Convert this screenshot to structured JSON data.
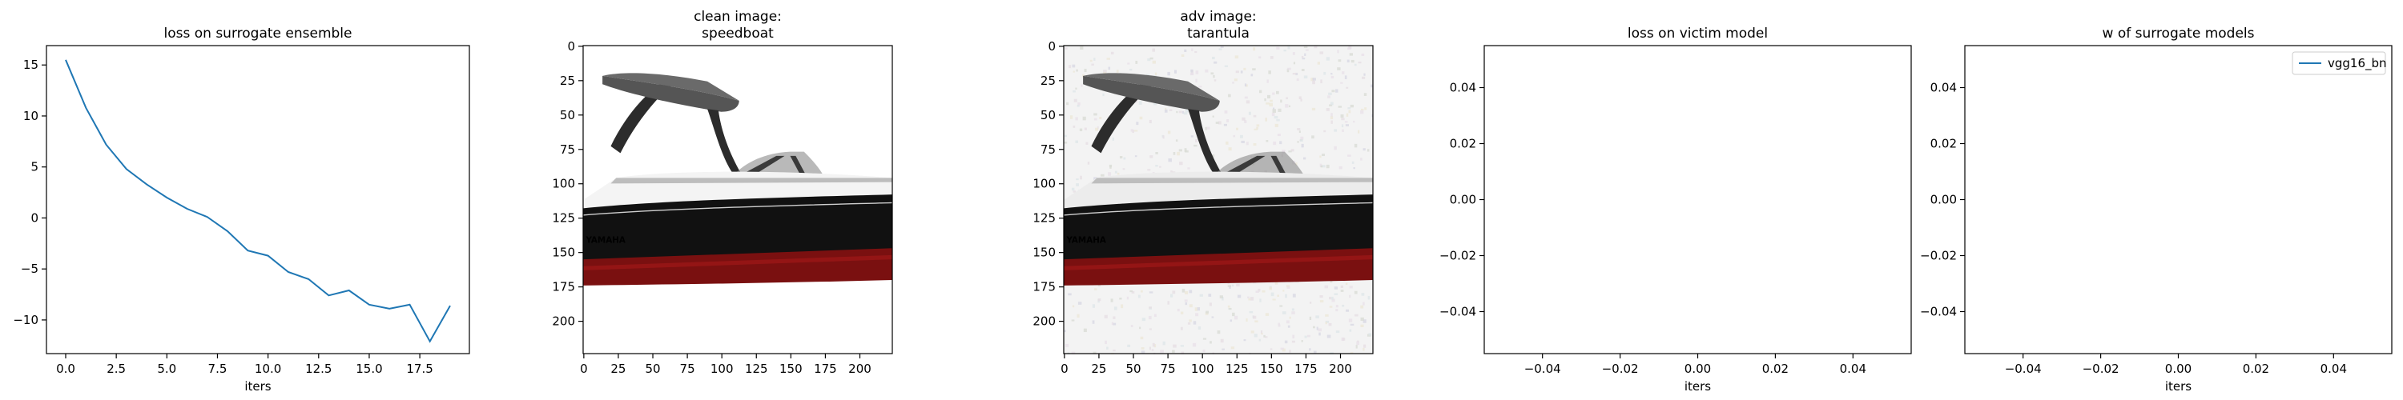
{
  "chart_data": [
    {
      "type": "line",
      "title": "loss on surrogate ensemble",
      "xlabel": "iters",
      "ylabel": "",
      "xlim": [
        -0.95,
        19.95
      ],
      "ylim": [
        -13.3,
        16.9
      ],
      "xticks": [
        0.0,
        2.5,
        5.0,
        7.5,
        10.0,
        12.5,
        15.0,
        17.5
      ],
      "xtick_labels": [
        "0.0",
        "2.5",
        "5.0",
        "7.5",
        "10.0",
        "12.5",
        "15.0",
        "17.5"
      ],
      "yticks": [
        15,
        10,
        5,
        0,
        -5,
        -10
      ],
      "ytick_labels": [
        "15",
        "10",
        "5",
        "0",
        "−5",
        "−10"
      ],
      "line_color": "#1f77b4",
      "series": [
        {
          "x": [
            0,
            1,
            2,
            3,
            4,
            5,
            6,
            7,
            8,
            9,
            10,
            11,
            12,
            13,
            14,
            15,
            16,
            17,
            18,
            19
          ],
          "values": [
            15.5,
            10.8,
            7.2,
            4.8,
            3.3,
            2.0,
            0.9,
            0.1,
            -1.3,
            -3.2,
            -3.7,
            -5.3,
            -6.0,
            -7.6,
            -7.1,
            -8.5,
            -8.9,
            -8.5,
            -12.1,
            -8.6
          ]
        }
      ],
      "grid": false
    },
    {
      "type": "image",
      "title": "clean image:\nspeedboat",
      "title_lines": [
        "clean image:",
        "speedboat"
      ],
      "xlim": [
        -0.5,
        223.5
      ],
      "ylim": [
        223.5,
        -0.5
      ],
      "xticks": [
        0,
        25,
        50,
        75,
        100,
        125,
        150,
        175,
        200
      ],
      "xtick_labels": [
        "0",
        "25",
        "50",
        "75",
        "100",
        "125",
        "150",
        "175",
        "200"
      ],
      "yticks": [
        0,
        25,
        50,
        75,
        100,
        125,
        150,
        175,
        200
      ],
      "ytick_labels": [
        "0",
        "25",
        "50",
        "75",
        "100",
        "125",
        "150",
        "175",
        "200"
      ],
      "brand_text": "YAMAHA",
      "noise": false
    },
    {
      "type": "image",
      "title": "adv image:\ntarantula",
      "title_lines": [
        "adv image:",
        "tarantula"
      ],
      "xlim": [
        -0.5,
        223.5
      ],
      "ylim": [
        223.5,
        -0.5
      ],
      "xticks": [
        0,
        25,
        50,
        75,
        100,
        125,
        150,
        175,
        200
      ],
      "xtick_labels": [
        "0",
        "25",
        "50",
        "75",
        "100",
        "125",
        "150",
        "175",
        "200"
      ],
      "yticks": [
        0,
        25,
        50,
        75,
        100,
        125,
        150,
        175,
        200
      ],
      "ytick_labels": [
        "0",
        "25",
        "50",
        "75",
        "100",
        "125",
        "150",
        "175",
        "200"
      ],
      "brand_text": "YAMAHA",
      "noise": true
    },
    {
      "type": "line",
      "title": "loss on victim model",
      "xlabel": "iters",
      "ylabel": "",
      "xlim": [
        -0.055,
        0.055
      ],
      "ylim": [
        -0.055,
        0.055
      ],
      "xticks": [
        -0.04,
        -0.02,
        0.0,
        0.02,
        0.04
      ],
      "xtick_labels": [
        "−0.04",
        "−0.02",
        "0.00",
        "0.02",
        "0.04"
      ],
      "yticks": [
        0.04,
        0.02,
        0.0,
        -0.02,
        -0.04
      ],
      "ytick_labels": [
        "0.04",
        "0.02",
        "0.00",
        "−0.02",
        "−0.04"
      ],
      "series": []
    },
    {
      "type": "line",
      "title": "w of surrogate models",
      "xlabel": "iters",
      "ylabel": "",
      "xlim": [
        -0.055,
        0.055
      ],
      "ylim": [
        -0.055,
        0.055
      ],
      "xticks": [
        -0.04,
        -0.02,
        0.0,
        0.02,
        0.04
      ],
      "xtick_labels": [
        "−0.04",
        "−0.02",
        "0.00",
        "0.02",
        "0.04"
      ],
      "yticks": [
        0.04,
        0.02,
        0.0,
        -0.02,
        -0.04
      ],
      "ytick_labels": [
        "0.04",
        "0.02",
        "0.00",
        "−0.02",
        "−0.04"
      ],
      "legend": {
        "position": "upper right",
        "entries": [
          {
            "name": "vgg16_bn",
            "color": "#1f77b4"
          }
        ]
      },
      "series": [
        {
          "name": "vgg16_bn",
          "values": []
        }
      ]
    }
  ]
}
